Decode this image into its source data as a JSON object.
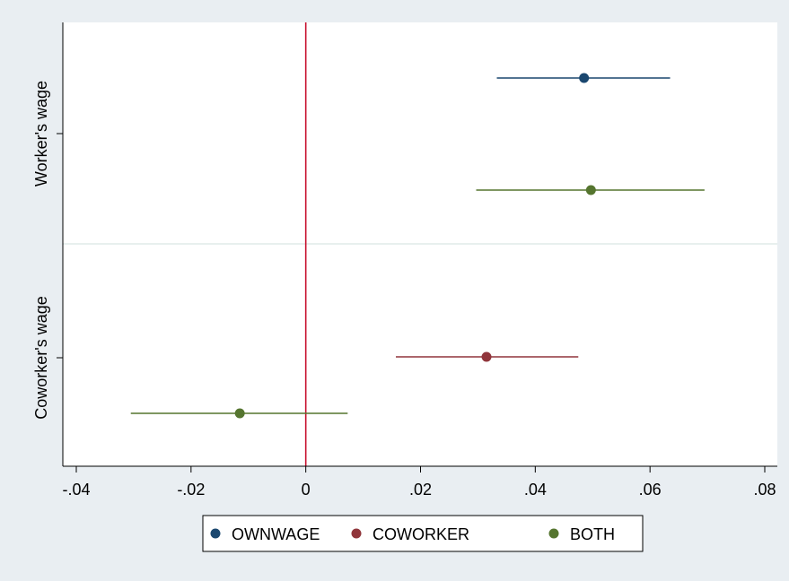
{
  "chart_data": {
    "type": "scatter",
    "subtype": "coefficient plot with confidence intervals",
    "title": "",
    "xlabel": "",
    "ylabel": "",
    "xlim": [
      -0.04,
      0.08
    ],
    "x_ticks": [
      -0.04,
      -0.02,
      0,
      0.02,
      0.04,
      0.06,
      0.08
    ],
    "x_tick_labels": [
      "-.04",
      "-.02",
      "0",
      ".02",
      ".04",
      ".06",
      ".08"
    ],
    "reference_line": {
      "x": 0,
      "color": "#c8102e"
    },
    "grid": false,
    "groups": [
      {
        "label": "Worker's wage"
      },
      {
        "label": "Coworker's wage"
      }
    ],
    "series": [
      {
        "name": "OWNWAGE",
        "color": "#1a476f",
        "points": [
          {
            "group": "Worker's wage",
            "estimate": 0.0485,
            "ci": [
              0.0333,
              0.0635
            ]
          }
        ]
      },
      {
        "name": "COWORKER",
        "color": "#90353b",
        "points": [
          {
            "group": "Coworker's wage",
            "estimate": 0.0315,
            "ci": [
              0.0157,
              0.0475
            ]
          }
        ]
      },
      {
        "name": "BOTH",
        "color": "#55752f",
        "points": [
          {
            "group": "Worker's wage",
            "estimate": 0.0497,
            "ci": [
              0.0297,
              0.0695
            ]
          },
          {
            "group": "Coworker's wage",
            "estimate": -0.0115,
            "ci": [
              -0.0305,
              0.0073
            ]
          }
        ]
      }
    ],
    "legend": {
      "position": "bottom",
      "entries": [
        "OWNWAGE",
        "COWORKER",
        "BOTH"
      ]
    }
  }
}
